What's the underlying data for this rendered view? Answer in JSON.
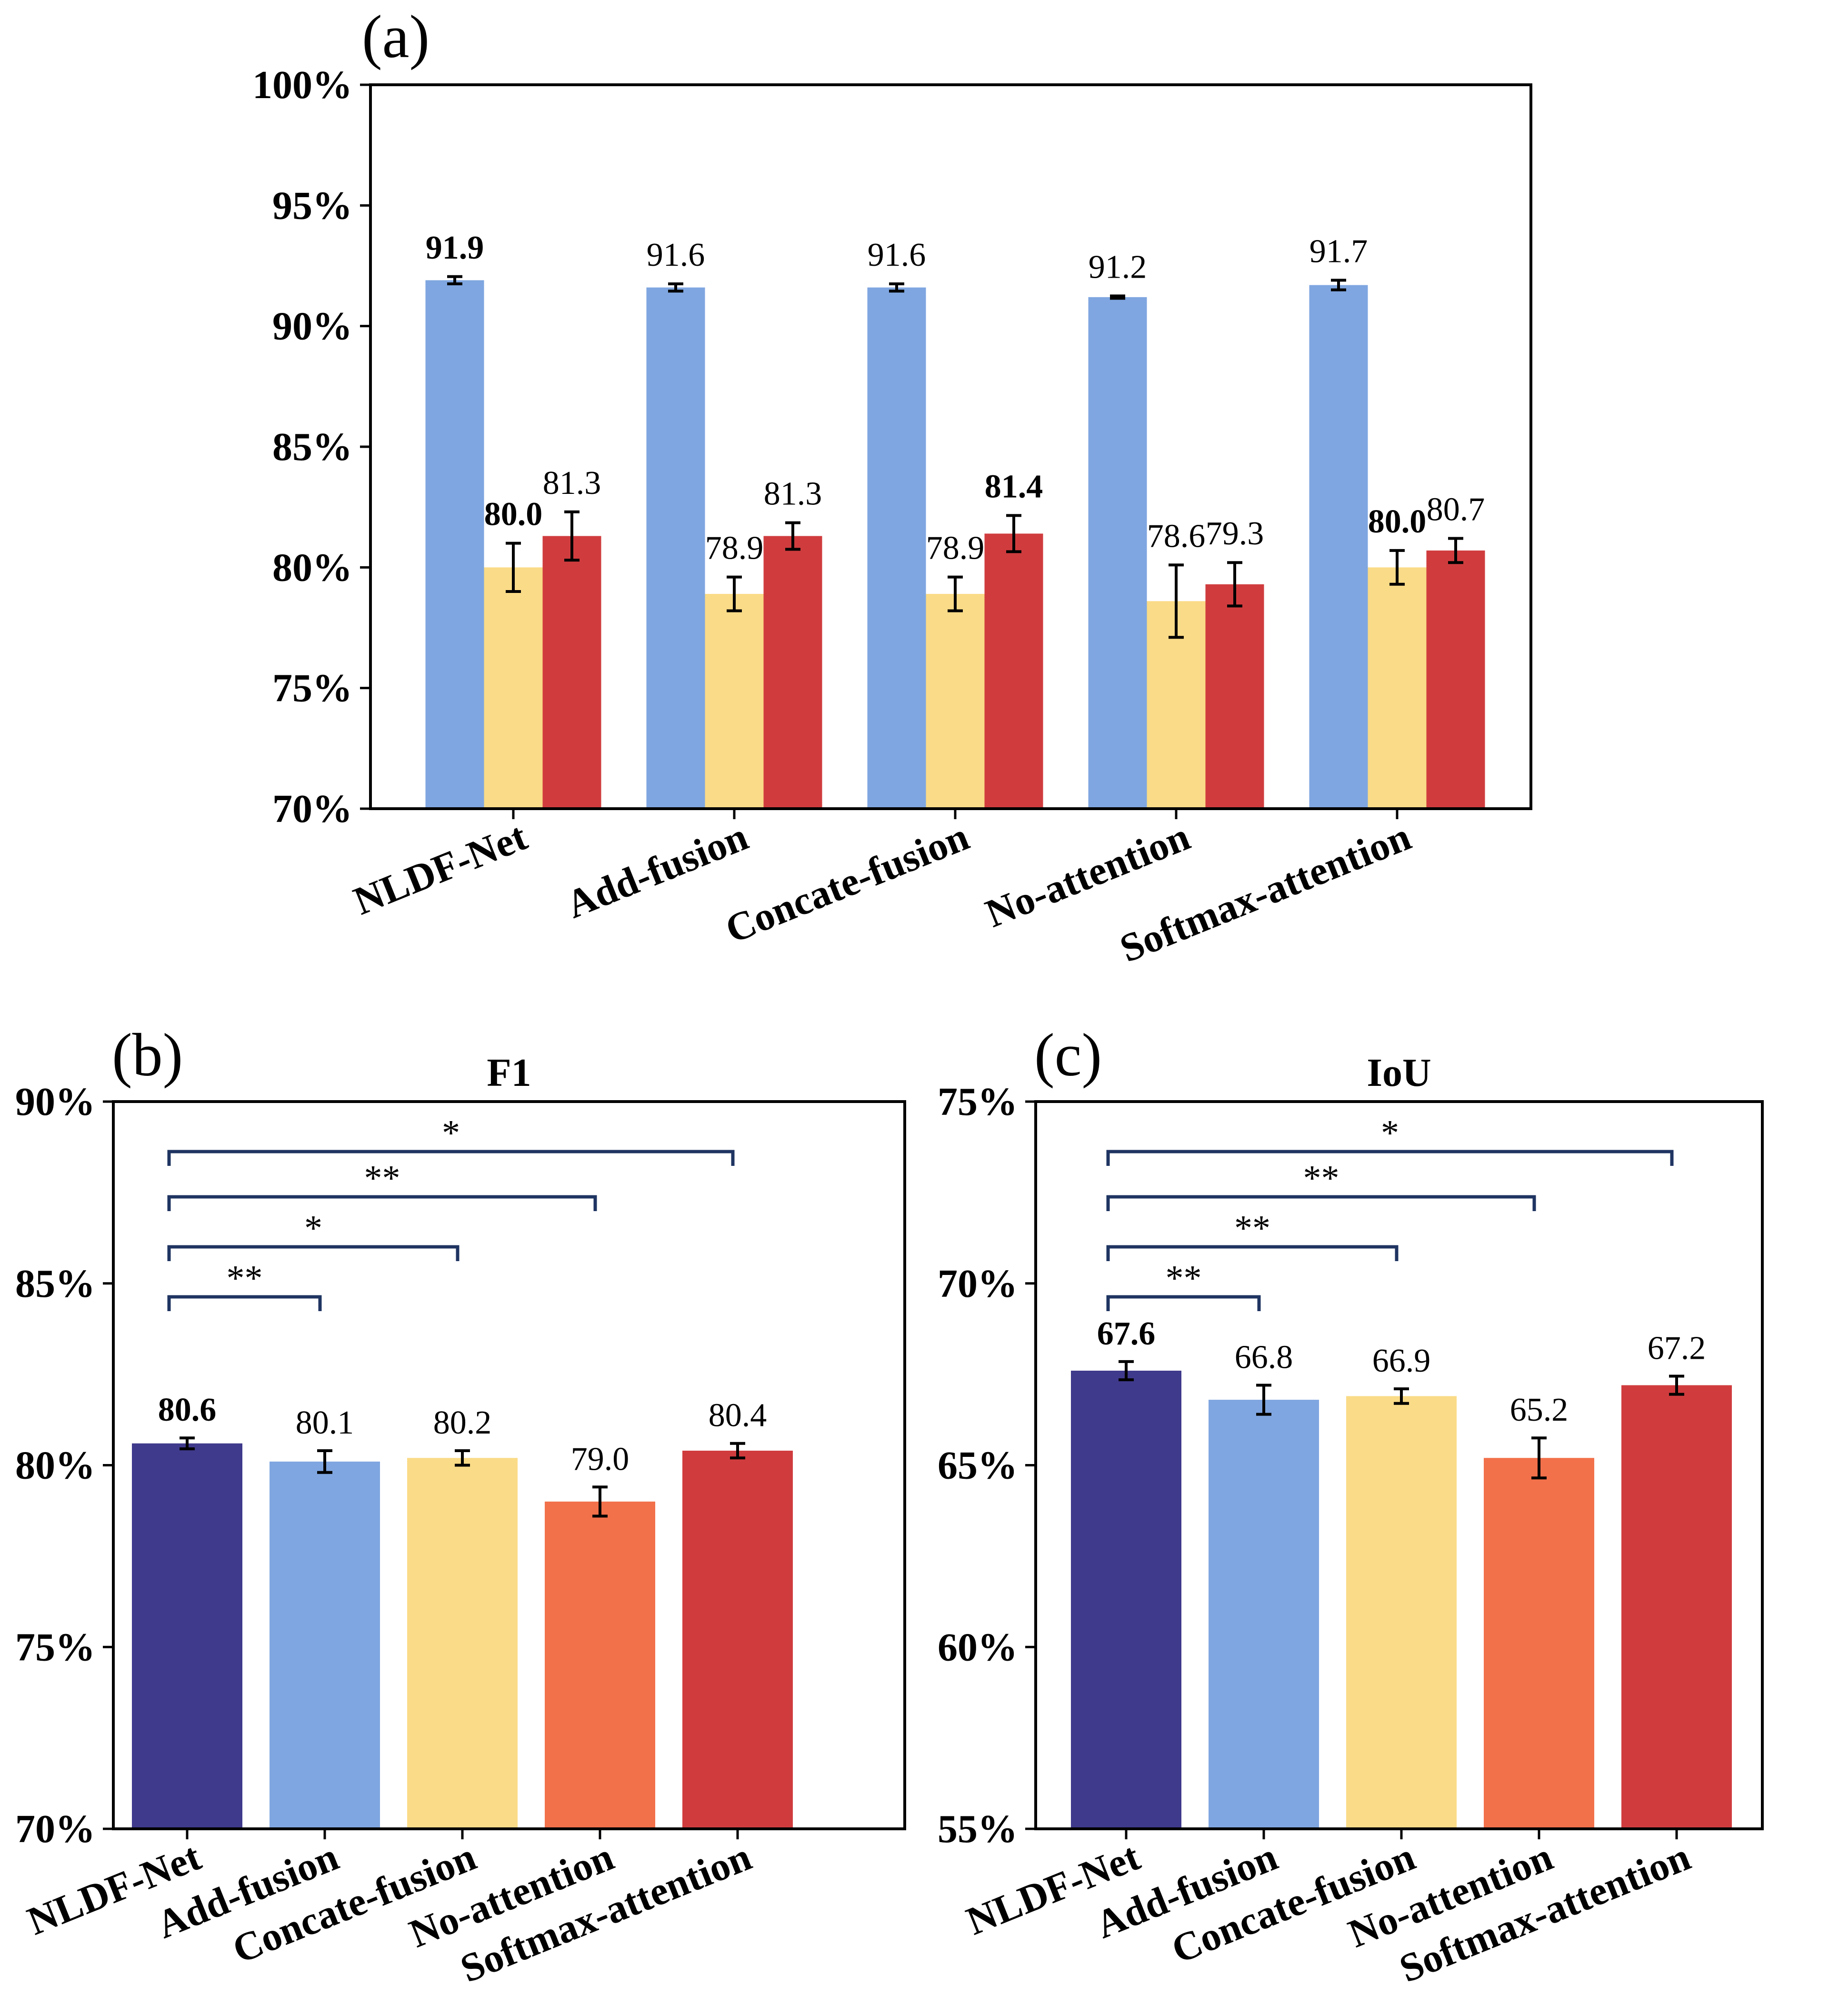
{
  "colors": {
    "dark_blue": "#3F3A8C",
    "light_blue": "#7FA6E0",
    "yellow": "#FADB87",
    "orange": "#F2704A",
    "red": "#D03C3E",
    "bracket": "#1F3461",
    "axis": "#000000"
  },
  "chart_data": [
    {
      "id": "a",
      "type": "bar",
      "panel_label": "(a)",
      "title": "",
      "xlabel": "",
      "ylabel": "",
      "ylim": [
        70,
        100
      ],
      "yticks": [
        "70%",
        "75%",
        "80%",
        "85%",
        "90%",
        "95%",
        "100%"
      ],
      "categories": [
        "NLDF-Net",
        "Add-fusion",
        "Concate-fusion",
        "No-attention",
        "Softmax-attention"
      ],
      "grid": false,
      "series": [
        {
          "color": "#7FA6E0",
          "values": [
            91.9,
            91.6,
            91.6,
            91.2,
            91.7
          ],
          "errors": [
            0.15,
            0.15,
            0.15,
            0.05,
            0.2
          ],
          "labels": [
            "91.9",
            "91.6",
            "91.6",
            "91.2",
            "91.7"
          ],
          "bold": [
            true,
            false,
            false,
            false,
            false
          ]
        },
        {
          "color": "#FADB87",
          "values": [
            80.0,
            78.9,
            78.9,
            78.6,
            80.0
          ],
          "errors": [
            1.0,
            0.7,
            0.7,
            1.5,
            0.7
          ],
          "labels": [
            "80.0",
            "78.9",
            "78.9",
            "78.6",
            "80.0"
          ],
          "bold": [
            true,
            false,
            false,
            false,
            true
          ]
        },
        {
          "color": "#D03C3E",
          "values": [
            81.3,
            81.3,
            81.4,
            79.3,
            80.7
          ],
          "errors": [
            1.0,
            0.55,
            0.75,
            0.9,
            0.5
          ],
          "labels": [
            "81.3",
            "81.3",
            "81.4",
            "79.3",
            "80.7"
          ],
          "bold": [
            false,
            false,
            true,
            false,
            false
          ]
        }
      ]
    },
    {
      "id": "b",
      "type": "bar",
      "panel_label": "(b)",
      "title": "F1",
      "xlabel": "",
      "ylabel": "",
      "ylim": [
        70,
        90
      ],
      "yticks": [
        "70%",
        "75%",
        "80%",
        "85%",
        "90%"
      ],
      "categories": [
        "NLDF-Net",
        "Add-fusion",
        "Concate-fusion",
        "No-attention",
        "Softmax-attention"
      ],
      "grid": false,
      "values": [
        80.6,
        80.1,
        80.2,
        79.0,
        80.4
      ],
      "errors": [
        0.15,
        0.3,
        0.2,
        0.4,
        0.2
      ],
      "labels": [
        "80.6",
        "80.1",
        "80.2",
        "79.0",
        "80.4"
      ],
      "bold": [
        true,
        false,
        false,
        false,
        false
      ],
      "bar_colors": [
        "#3F3A8C",
        "#7FA6E0",
        "#FADB87",
        "#F2704A",
        "#D03C3E"
      ],
      "significance": [
        {
          "from": 0,
          "to": 1,
          "label": "**"
        },
        {
          "from": 0,
          "to": 2,
          "label": "*"
        },
        {
          "from": 0,
          "to": 3,
          "label": "**"
        },
        {
          "from": 0,
          "to": 4,
          "label": "*"
        }
      ]
    },
    {
      "id": "c",
      "type": "bar",
      "panel_label": "(c)",
      "title": "IoU",
      "xlabel": "",
      "ylabel": "",
      "ylim": [
        55,
        75
      ],
      "yticks": [
        "55%",
        "60%",
        "65%",
        "70%",
        "75%"
      ],
      "categories": [
        "NLDF-Net",
        "Add-fusion",
        "Concate-fusion",
        "No-attention",
        "Softmax-attention"
      ],
      "grid": false,
      "values": [
        67.6,
        66.8,
        66.9,
        65.2,
        67.2
      ],
      "errors": [
        0.25,
        0.4,
        0.2,
        0.55,
        0.25
      ],
      "labels": [
        "67.6",
        "66.8",
        "66.9",
        "65.2",
        "67.2"
      ],
      "bold": [
        true,
        false,
        false,
        false,
        false
      ],
      "bar_colors": [
        "#3F3A8C",
        "#7FA6E0",
        "#FADB87",
        "#F2704A",
        "#D03C3E"
      ],
      "significance": [
        {
          "from": 0,
          "to": 1,
          "label": "**"
        },
        {
          "from": 0,
          "to": 2,
          "label": "**"
        },
        {
          "from": 0,
          "to": 3,
          "label": "**"
        },
        {
          "from": 0,
          "to": 4,
          "label": "*"
        }
      ]
    }
  ]
}
